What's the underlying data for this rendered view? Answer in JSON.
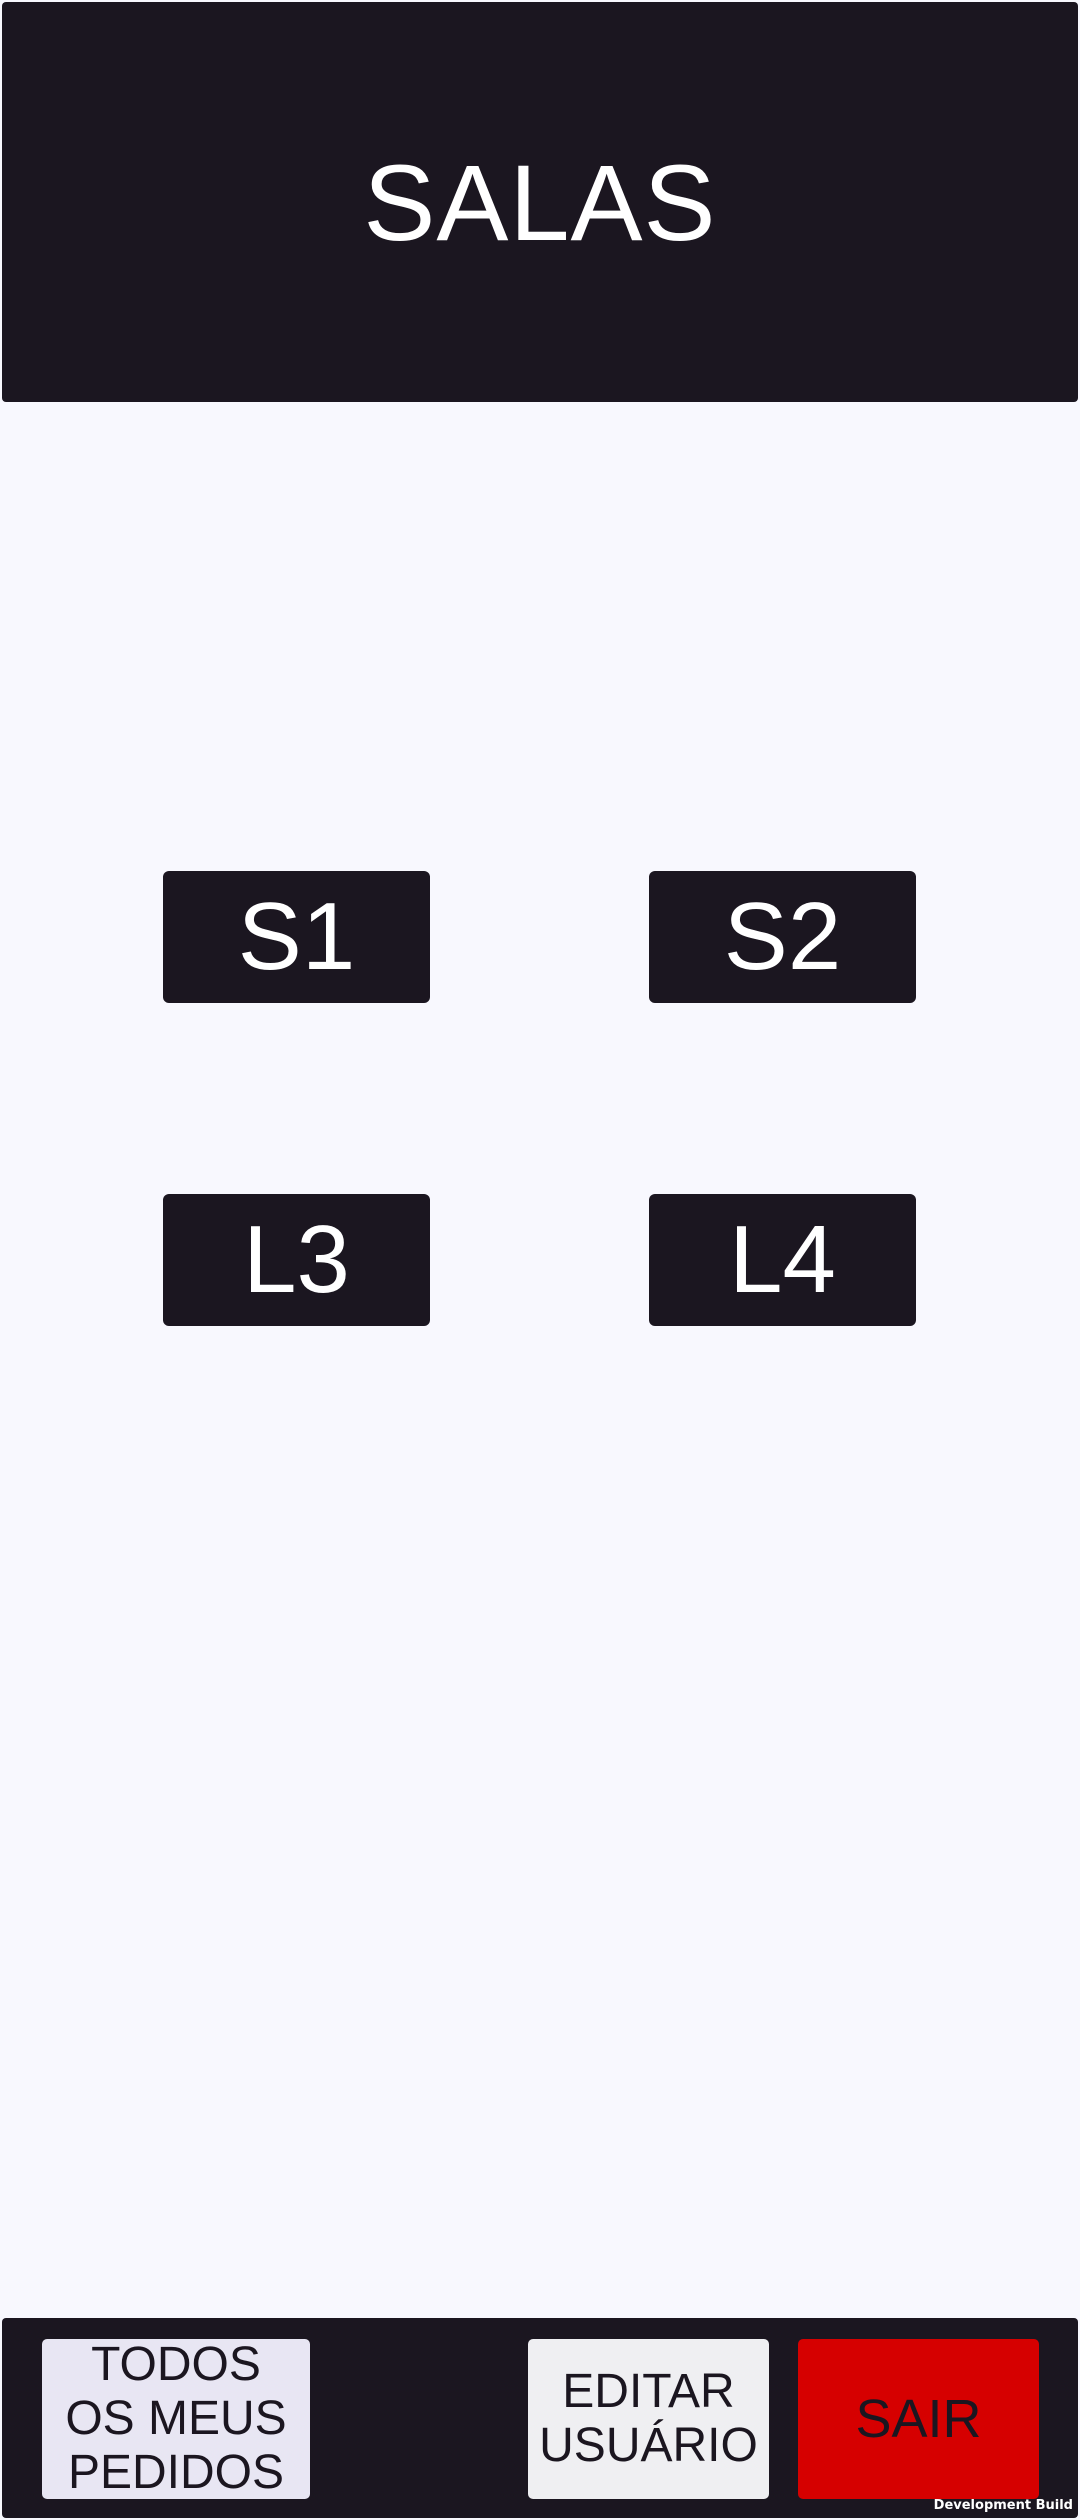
{
  "header": {
    "title": "SALAS"
  },
  "rooms": [
    {
      "label": "S1"
    },
    {
      "label": "S2"
    },
    {
      "label": "L3"
    },
    {
      "label": "L4"
    }
  ],
  "footer": {
    "orders_label": "TODOS\nOS MEUS\nPEDIDOS",
    "edit_user_label": "EDITAR\nUSUÁRIO",
    "exit_label": "SAIR"
  },
  "dev_build_label": "Development Build",
  "colors": {
    "background": "#f8f8fe",
    "dark": "#1b1620",
    "exit_red": "#d60000"
  }
}
